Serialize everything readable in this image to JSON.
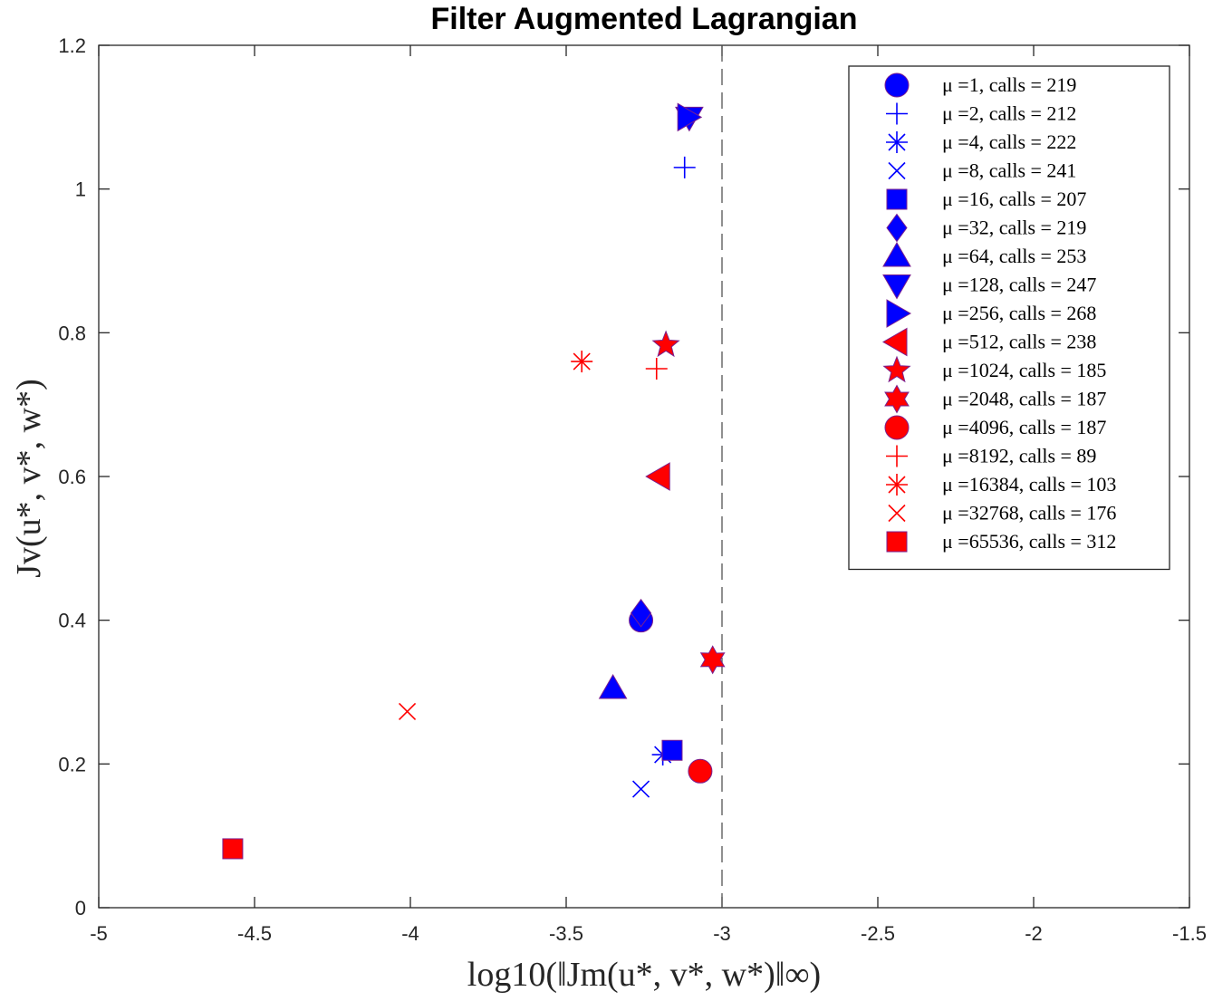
{
  "chart_data": {
    "type": "scatter",
    "title": "Filter Augmented Lagrangian",
    "xlabel": "log10(‖Jm(u*, v*, w*)‖∞)",
    "ylabel": "Jv(u*, v*, w*)",
    "xlim": [
      -5,
      -1.5
    ],
    "ylim": [
      0,
      1.2
    ],
    "x_ticks": [
      -5,
      -4.5,
      -4,
      -3.5,
      -3,
      -2.5,
      -2,
      -1.5
    ],
    "x_tick_labels": [
      "-5",
      "-4.5",
      "-4",
      "-3.5",
      "-3",
      "-2.5",
      "-2",
      "-1.5"
    ],
    "y_ticks": [
      0,
      0.2,
      0.4,
      0.6,
      0.8,
      1,
      1.2
    ],
    "y_tick_labels": [
      "0",
      "0.2",
      "0.4",
      "0.6",
      "0.8",
      "1",
      "1.2"
    ],
    "reference_line": {
      "x": -3,
      "style": "dashed"
    },
    "grid": false,
    "legend_position": "top-right",
    "colors": {
      "blue": "#0000ff",
      "red": "#ff0000",
      "edge": "#7a1f8f",
      "axis": "#262626"
    },
    "series": [
      {
        "name": "μ =1, calls = 219",
        "marker": "circle",
        "color": "blue",
        "x": -3.26,
        "y": 0.4
      },
      {
        "name": "μ =2, calls = 212",
        "marker": "plus",
        "color": "blue",
        "x": -3.12,
        "y": 1.03
      },
      {
        "name": "μ =4, calls = 222",
        "marker": "asterisk",
        "color": "blue",
        "x": -3.19,
        "y": 0.213
      },
      {
        "name": "μ =8, calls = 241",
        "marker": "x",
        "color": "blue",
        "x": -3.26,
        "y": 0.165
      },
      {
        "name": "μ =16, calls = 207",
        "marker": "square",
        "color": "blue",
        "x": -3.16,
        "y": 0.219
      },
      {
        "name": "μ =32, calls = 219",
        "marker": "diamond",
        "color": "blue",
        "x": -3.26,
        "y": 0.41
      },
      {
        "name": "μ =64, calls = 253",
        "marker": "triangle-up",
        "color": "blue",
        "x": -3.35,
        "y": 0.305
      },
      {
        "name": "μ =128, calls = 247",
        "marker": "triangle-down",
        "color": "blue",
        "x": -3.105,
        "y": 1.1
      },
      {
        "name": "μ =256, calls = 268",
        "marker": "triangle-right",
        "color": "blue",
        "x": -3.11,
        "y": 1.1
      },
      {
        "name": "μ =512, calls = 238",
        "marker": "triangle-left",
        "color": "red",
        "x": -3.2,
        "y": 0.6
      },
      {
        "name": "μ =1024, calls = 185",
        "marker": "pentagram",
        "color": "red",
        "x": -3.18,
        "y": 0.783
      },
      {
        "name": "μ =2048, calls = 187",
        "marker": "hexagram",
        "color": "red",
        "x": -3.03,
        "y": 0.345
      },
      {
        "name": "μ =4096, calls = 187",
        "marker": "circle",
        "color": "red",
        "x": -3.07,
        "y": 0.19
      },
      {
        "name": "μ =8192, calls = 89",
        "marker": "plus",
        "color": "red",
        "x": -3.21,
        "y": 0.75
      },
      {
        "name": "μ =16384, calls = 103",
        "marker": "asterisk",
        "color": "red",
        "x": -3.45,
        "y": 0.76
      },
      {
        "name": "μ =32768, calls = 176",
        "marker": "x",
        "color": "red",
        "x": -4.01,
        "y": 0.273
      },
      {
        "name": "μ =65536, calls = 312",
        "marker": "square",
        "color": "red",
        "x": -4.57,
        "y": 0.082
      }
    ]
  }
}
